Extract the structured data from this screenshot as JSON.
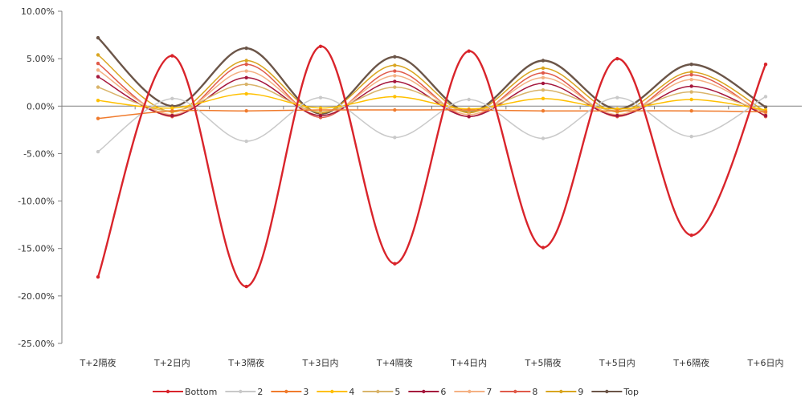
{
  "chart_data": {
    "type": "line",
    "title": "",
    "xlabel": "",
    "ylabel": "",
    "ylim": [
      -25,
      10
    ],
    "y_ticks": [
      "10.00%",
      "5.00%",
      "0.00%",
      "-5.00%",
      "-10.00%",
      "-15.00%",
      "-20.00%",
      "-25.00%"
    ],
    "y_tick_values": [
      10,
      5,
      0,
      -5,
      -10,
      -15,
      -20,
      -25
    ],
    "categories": [
      "T+2隔夜",
      "T+2日内",
      "T+3隔夜",
      "T+3日内",
      "T+4隔夜",
      "T+4日内",
      "T+5隔夜",
      "T+5日内",
      "T+6隔夜",
      "T+6日内"
    ],
    "grid": false,
    "legend_position": "bottom",
    "series": [
      {
        "name": "Bottom",
        "color": "#d9242b",
        "values": [
          -18.0,
          5.3,
          -19.0,
          6.3,
          -16.6,
          5.8,
          -14.9,
          5.0,
          -13.6,
          4.4
        ]
      },
      {
        "name": "2",
        "color": "#c9c9c9",
        "values": [
          -4.8,
          0.8,
          -3.7,
          0.9,
          -3.3,
          0.7,
          -3.4,
          0.9,
          -3.2,
          1.0
        ]
      },
      {
        "name": "3",
        "color": "#f07b2d",
        "values": [
          -1.3,
          -0.5,
          -0.5,
          -0.4,
          -0.4,
          -0.4,
          -0.5,
          -0.5,
          -0.5,
          -0.6
        ]
      },
      {
        "name": "4",
        "color": "#ffc000",
        "values": [
          0.6,
          -0.2,
          1.3,
          -0.2,
          1.0,
          -0.3,
          0.8,
          -0.3,
          0.7,
          -0.4
        ]
      },
      {
        "name": "5",
        "color": "#d9b46a",
        "values": [
          2.0,
          -0.5,
          2.3,
          -0.6,
          2.0,
          -0.5,
          1.7,
          -0.5,
          1.5,
          -0.6
        ]
      },
      {
        "name": "6",
        "color": "#a5173d",
        "values": [
          3.1,
          -1.0,
          3.0,
          -1.0,
          2.6,
          -1.1,
          2.4,
          -1.0,
          2.1,
          -1.0
        ]
      },
      {
        "name": "7",
        "color": "#f4b183",
        "values": [
          3.8,
          -0.9,
          3.7,
          -1.0,
          3.2,
          -0.9,
          3.0,
          -0.9,
          2.8,
          -0.8
        ]
      },
      {
        "name": "8",
        "color": "#e05a4a",
        "values": [
          4.5,
          -1.1,
          4.4,
          -1.2,
          3.7,
          -1.1,
          3.5,
          -1.1,
          3.3,
          -1.1
        ]
      },
      {
        "name": "9",
        "color": "#d9a520",
        "values": [
          5.4,
          -0.6,
          4.8,
          -0.7,
          4.3,
          -0.7,
          4.0,
          -0.6,
          3.6,
          -0.6
        ]
      },
      {
        "name": "Top",
        "color": "#6b5548",
        "values": [
          7.2,
          0.0,
          6.1,
          -0.8,
          5.2,
          -0.6,
          4.8,
          -0.3,
          4.4,
          -0.1
        ]
      }
    ]
  }
}
